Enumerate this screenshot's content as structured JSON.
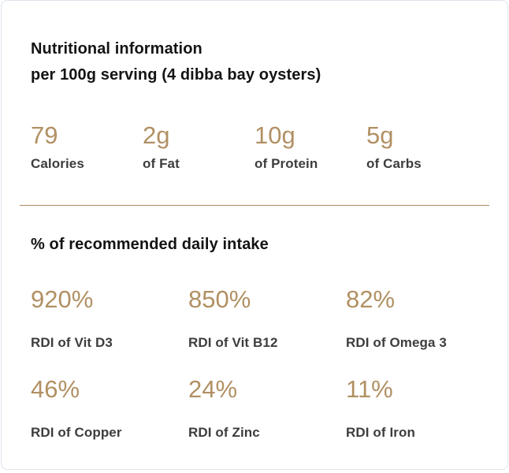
{
  "card": {
    "title_line1": "Nutritional information",
    "title_line2": "per 100g serving (4 dibba bay oysters)",
    "section2_title": "% of recommended daily intake",
    "nutrition_stats": [
      {
        "value": "79",
        "label": "Calories"
      },
      {
        "value": "2g",
        "label": "of Fat"
      },
      {
        "value": "10g",
        "label": "of Protein"
      },
      {
        "value": "5g",
        "label": "of Carbs"
      }
    ],
    "rdi_stats": [
      {
        "value": "920%",
        "label": "RDI of Vit D3"
      },
      {
        "value": "850%",
        "label": "RDI of Vit B12"
      },
      {
        "value": "82%",
        "label": "RDI of Omega 3"
      },
      {
        "value": "46%",
        "label": "RDI of Copper"
      },
      {
        "value": "24%",
        "label": "RDI of Zinc"
      },
      {
        "value": "11%",
        "label": "RDI of Iron"
      }
    ],
    "colors": {
      "accent": "#b19063",
      "divider": "#ab8a5e",
      "heading_text": "#141414",
      "label_text": "#3d3d3d",
      "card_border": "#dde4eb",
      "background": "#ffffff"
    }
  }
}
